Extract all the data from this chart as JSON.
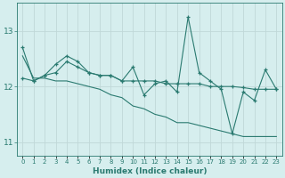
{
  "xlabel": "Humidex (Indice chaleur)",
  "ylabel": "",
  "bg_color": "#d6eeee",
  "grid_color": "#c0d8d8",
  "line_color": "#2a7a70",
  "x": [
    0,
    1,
    2,
    3,
    4,
    5,
    6,
    7,
    8,
    9,
    10,
    11,
    12,
    13,
    14,
    15,
    16,
    17,
    18,
    19,
    20,
    21,
    22,
    23
  ],
  "series1": [
    12.7,
    12.1,
    12.2,
    12.4,
    12.55,
    12.45,
    12.25,
    12.2,
    12.2,
    12.1,
    12.35,
    11.85,
    12.05,
    12.1,
    11.9,
    13.25,
    12.25,
    12.1,
    11.95,
    11.15,
    11.9,
    11.75,
    12.3,
    11.95
  ],
  "series2": [
    12.15,
    12.1,
    12.2,
    12.25,
    12.45,
    12.35,
    12.25,
    12.2,
    12.2,
    12.1,
    12.1,
    12.1,
    12.1,
    12.05,
    12.05,
    12.05,
    12.05,
    12.0,
    12.0,
    12.0,
    11.98,
    11.95,
    11.95,
    11.95
  ],
  "series3": [
    12.55,
    12.15,
    12.15,
    12.1,
    12.1,
    12.05,
    12.0,
    11.95,
    11.85,
    11.8,
    11.65,
    11.6,
    11.5,
    11.45,
    11.35,
    11.35,
    11.3,
    11.25,
    11.2,
    11.15,
    11.1,
    11.1,
    11.1,
    11.1
  ],
  "ylim": [
    10.75,
    13.5
  ],
  "yticks": [
    11,
    12,
    13
  ],
  "xlim": [
    -0.5,
    23.5
  ],
  "figsize": [
    3.2,
    2.0
  ],
  "dpi": 100
}
